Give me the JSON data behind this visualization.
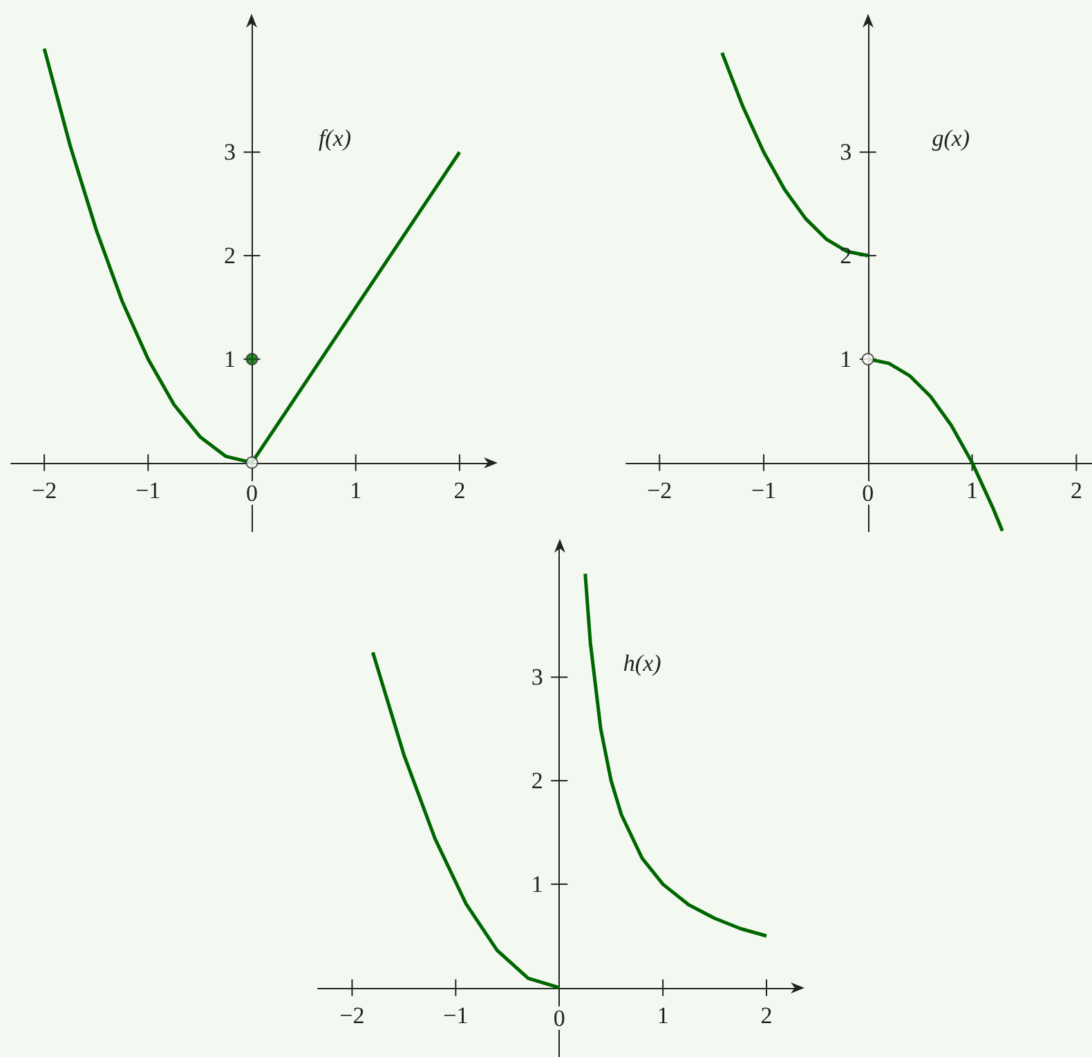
{
  "chart_data": [
    {
      "type": "line",
      "xlim": [
        -2.32,
        2.3
      ],
      "ylim": [
        -0.67,
        4.27
      ],
      "xticks": [
        -2,
        -1,
        0,
        1,
        2
      ],
      "yticks": [
        1,
        2,
        3
      ],
      "grid": false,
      "marker": "none",
      "annotations": [
        "f(x)"
      ],
      "series": [
        {
          "color": "#006600",
          "x": [
            -2,
            -1.75,
            -1.5,
            -1.25,
            -1,
            -0.75,
            -0.5,
            -0.25,
            0
          ],
          "values": [
            4,
            3.06,
            2.25,
            1.56,
            1,
            0.56,
            0.25,
            0.06,
            0
          ]
        },
        {
          "color": "#006600",
          "x": [
            0,
            1,
            2
          ],
          "values": [
            0,
            1.5,
            3
          ]
        },
        {
          "type": "scatter",
          "marker": "circle",
          "color": "#006600",
          "x": [
            0
          ],
          "values": [
            1
          ]
        },
        {
          "type": "scatter",
          "marker": "circle",
          "color": "#ffffff",
          "x": [
            0
          ],
          "values": [
            0
          ]
        }
      ]
    },
    {
      "type": "line",
      "xlim": [
        -2.32,
        2.15
      ],
      "ylim": [
        -0.67,
        4.27
      ],
      "xticks": [
        -2,
        -1,
        0,
        1,
        2
      ],
      "yticks": [
        1,
        2,
        3
      ],
      "grid": false,
      "marker": "none",
      "annotations": [
        "g(x)"
      ],
      "series": [
        {
          "color": "#006600",
          "x": [
            -1.4,
            -1.2,
            -1,
            -0.8,
            -0.6,
            -0.4,
            -0.2,
            0
          ],
          "values": [
            3.96,
            3.44,
            3,
            2.64,
            2.36,
            2.16,
            2.04,
            2
          ]
        },
        {
          "color": "#006600",
          "x": [
            0,
            0.2,
            0.4,
            0.6,
            0.8,
            1,
            1.2,
            1.29
          ],
          "values": [
            1,
            0.96,
            0.84,
            0.64,
            0.36,
            0,
            -0.44,
            -0.66
          ]
        },
        {
          "type": "scatter",
          "marker": "circle",
          "color": "#ffffff",
          "x": [
            0
          ],
          "values": [
            1
          ]
        }
      ]
    },
    {
      "type": "line",
      "xlim": [
        -2.33,
        2.3
      ],
      "ylim": [
        -0.67,
        4.27
      ],
      "xticks": [
        -2,
        -1,
        0,
        1,
        2
      ],
      "yticks": [
        1,
        2,
        3
      ],
      "grid": false,
      "marker": "none",
      "annotations": [
        "h(x)"
      ],
      "series": [
        {
          "color": "#006600",
          "x": [
            -1.8,
            -1.5,
            -1.2,
            -0.9,
            -0.6,
            -0.3,
            0
          ],
          "values": [
            3.24,
            2.25,
            1.44,
            0.81,
            0.36,
            0.09,
            0
          ]
        },
        {
          "color": "#006600",
          "x": [
            0.25,
            0.3,
            0.4,
            0.5,
            0.6,
            0.8,
            1,
            1.25,
            1.5,
            1.75,
            2
          ],
          "values": [
            4,
            3.33,
            2.5,
            2,
            1.67,
            1.25,
            1,
            0.8,
            0.67,
            0.57,
            0.5
          ]
        }
      ]
    }
  ]
}
